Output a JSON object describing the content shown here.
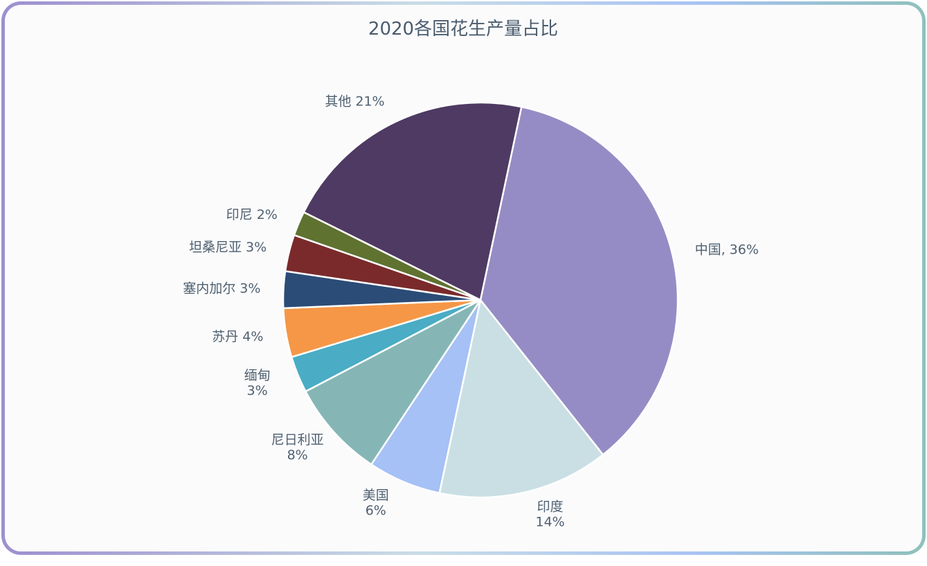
{
  "chart_data": {
    "type": "pie",
    "title": "2020各国花生产量占比",
    "slices": [
      {
        "name": "中国",
        "percent": 36,
        "label": [
          "中国, 36%"
        ],
        "color": "#968cc5"
      },
      {
        "name": "印度",
        "percent": 14,
        "label": [
          "印度",
          "14%"
        ],
        "color": "#c9dfe4"
      },
      {
        "name": "美国",
        "percent": 6,
        "label": [
          "美国",
          "6%"
        ],
        "color": "#a5c1f5"
      },
      {
        "name": "尼日利亚",
        "percent": 8,
        "label": [
          "尼日利亚",
          "8%"
        ],
        "color": "#85b6b5"
      },
      {
        "name": "缅甸",
        "percent": 3,
        "label": [
          "缅甸",
          "3%"
        ],
        "color": "#4aacc5"
      },
      {
        "name": "苏丹",
        "percent": 4,
        "label": [
          "苏丹 4%"
        ],
        "color": "#f59747"
      },
      {
        "name": "塞内加尔",
        "percent": 3,
        "label": [
          "塞内加尔 3%"
        ],
        "color": "#2b4c76"
      },
      {
        "name": "坦桑尼亚",
        "percent": 3,
        "label": [
          "坦桑尼亚 3%"
        ],
        "color": "#7a2a2b"
      },
      {
        "name": "印尼",
        "percent": 2,
        "label": [
          "印尼 2%"
        ],
        "color": "#5f7230"
      },
      {
        "name": "其他",
        "percent": 21,
        "label": [
          "其他 21%"
        ],
        "color": "#4e3a62"
      }
    ]
  }
}
